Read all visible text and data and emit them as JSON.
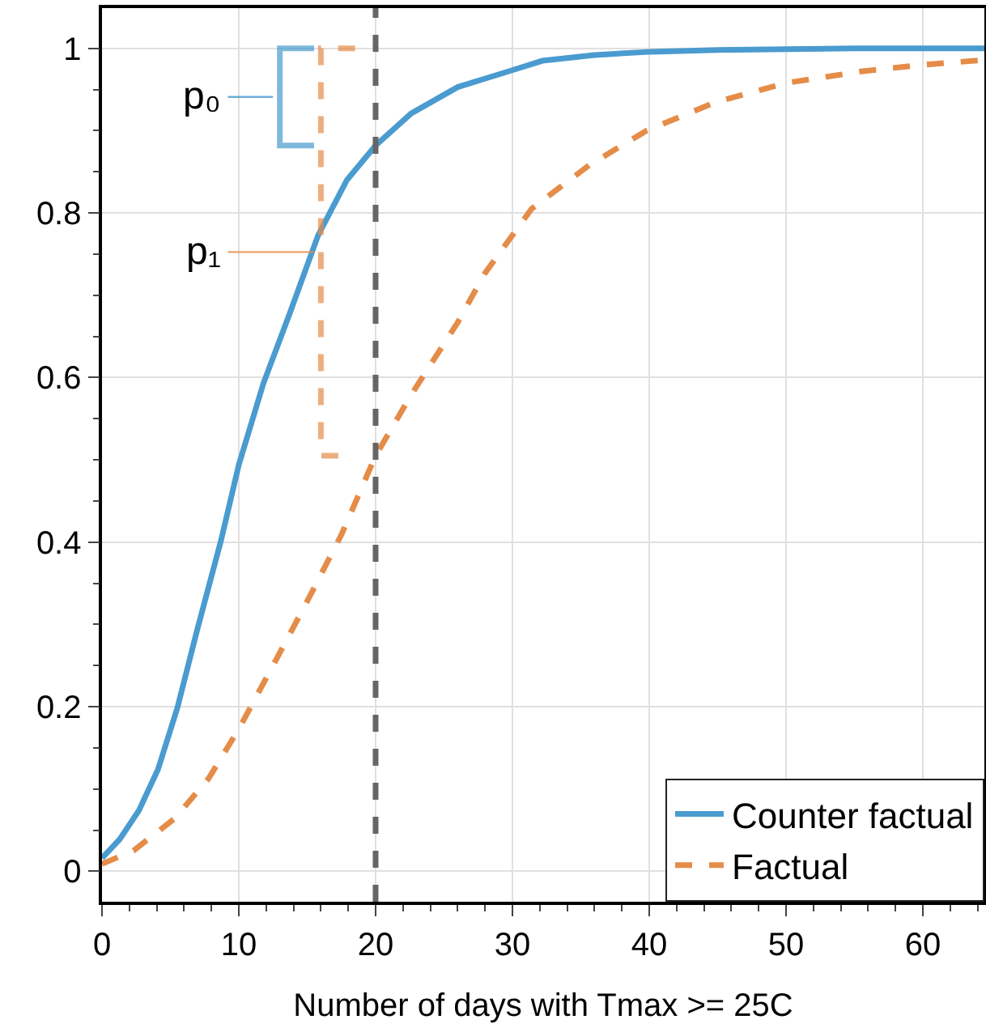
{
  "chart_data": {
    "type": "line",
    "xlabel": "Number of days with Tmax >= 25C",
    "series": [
      {
        "name": "Counter factual",
        "color": "#4a9bcf",
        "line_style": "solid",
        "x": [
          0,
          1.3,
          2.7,
          4.1,
          5.5,
          7,
          8.7,
          10,
          11.8,
          13.7,
          15.8,
          17.9,
          20,
          22.6,
          26,
          29.7,
          32.2,
          36,
          40.2,
          45,
          50,
          55,
          60,
          64.5
        ],
        "values": [
          0.016,
          0.039,
          0.074,
          0.124,
          0.198,
          0.296,
          0.402,
          0.494,
          0.593,
          0.677,
          0.773,
          0.84,
          0.882,
          0.921,
          0.953,
          0.972,
          0.985,
          0.992,
          0.996,
          0.998,
          0.999,
          1,
          1,
          1
        ]
      },
      {
        "name": "Factual",
        "color": "#e58c48",
        "line_style": "dashed",
        "x": [
          0,
          2.3,
          5.3,
          7.8,
          10,
          12.4,
          14.9,
          17.5,
          20,
          22.6,
          26,
          28,
          31.4,
          35.6,
          39.8,
          44.9,
          50,
          55.5,
          60,
          64.5
        ],
        "values": [
          0.009,
          0.025,
          0.064,
          0.113,
          0.173,
          0.247,
          0.325,
          0.409,
          0.505,
          0.579,
          0.667,
          0.727,
          0.805,
          0.858,
          0.9,
          0.935,
          0.958,
          0.972,
          0.98,
          0.986
        ]
      }
    ],
    "annotations": [
      "p₀",
      "p₁"
    ],
    "ref_lines": [
      {
        "axis": "x",
        "value": 20,
        "color": "#666666",
        "line_style": "dashed"
      }
    ],
    "xlim": [
      0,
      64.5
    ],
    "ylim": [
      -0.037,
      1.049
    ],
    "xticks": [
      0,
      10,
      20,
      30,
      40,
      50,
      60
    ],
    "yticks": [
      0,
      0.2,
      0.4,
      0.6,
      0.8,
      1
    ],
    "grid": true,
    "legend": "bottom right",
    "marker": "none"
  }
}
